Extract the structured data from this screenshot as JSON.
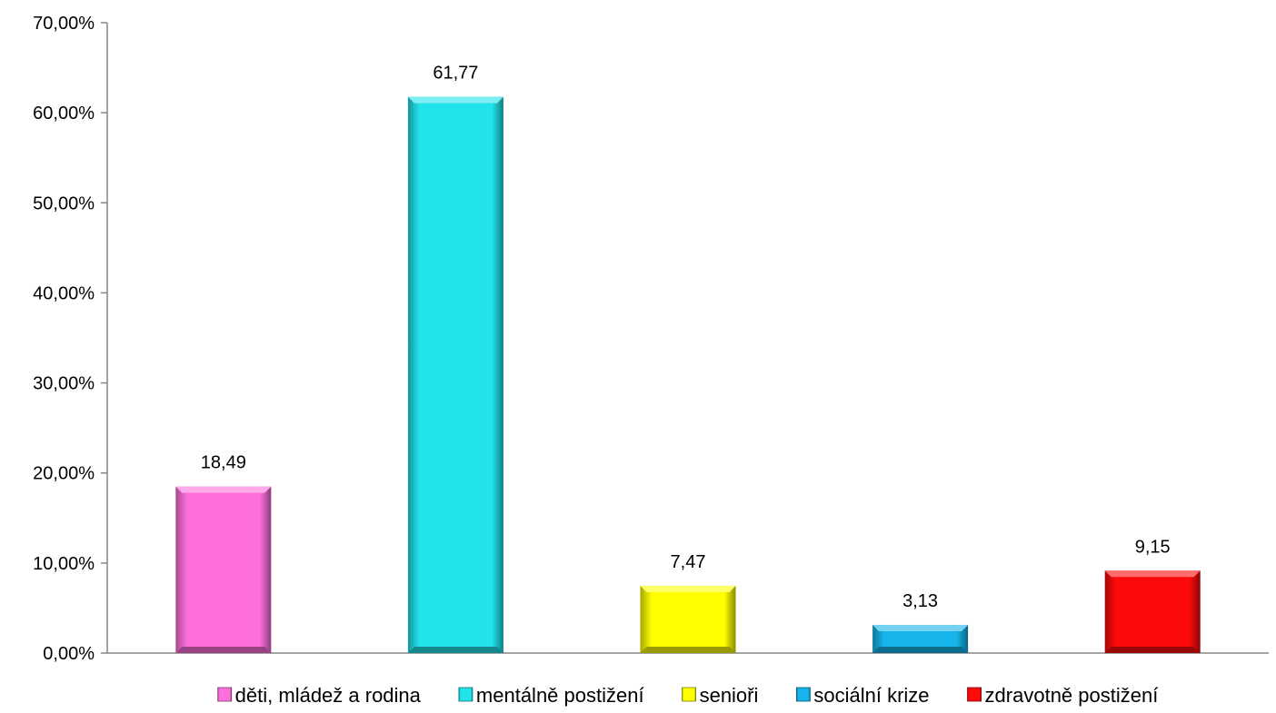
{
  "chart_data": {
    "type": "bar",
    "categories": [
      "děti, mládež a rodina",
      "mentálně postižení",
      "senioři",
      "sociální krize",
      "zdravotně postižení"
    ],
    "values": [
      18.49,
      61.77,
      7.47,
      3.13,
      9.15
    ],
    "data_labels": [
      "18,49",
      "61,77",
      "7,47",
      "3,13",
      "9,15"
    ],
    "colors": [
      "#ff6fdc",
      "#22e3ea",
      "#ffff00",
      "#16b4ea",
      "#ff0a0a"
    ],
    "ylim": [
      0,
      70
    ],
    "yticks": [
      0,
      10,
      20,
      30,
      40,
      50,
      60,
      70
    ],
    "ytick_labels": [
      "0,00%",
      "10,00%",
      "20,00%",
      "30,00%",
      "40,00%",
      "50,00%",
      "60,00%",
      "70,00%"
    ],
    "legend": {
      "placement": "bottom",
      "entries": [
        "děti, mládež a rodina",
        "mentálně postižení",
        "senioři",
        "sociální krize",
        "zdravotně postižení"
      ]
    },
    "grid": false,
    "title": "",
    "xlabel": "",
    "ylabel": ""
  }
}
